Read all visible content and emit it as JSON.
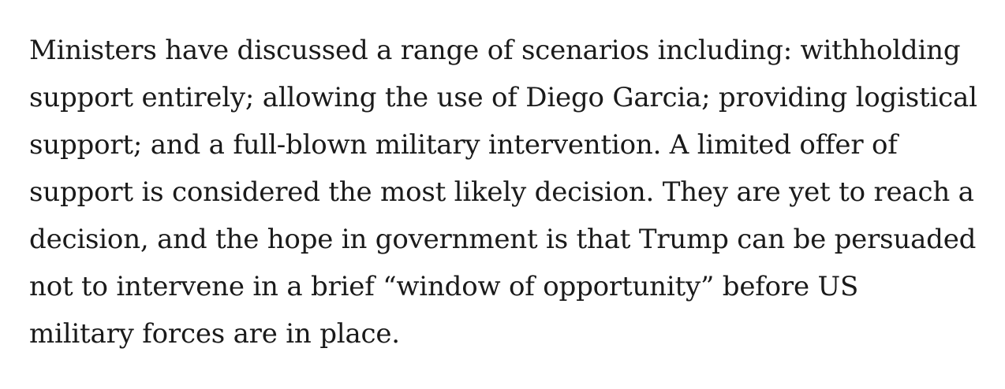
{
  "article": {
    "paragraph_lines": [
      "Ministers have discussed a range of scenarios including: withholding",
      "support entirely; allowing the use of Diego Garcia; providing logistical",
      "support; and a full-blown military intervention. A limited offer of",
      "support is considered the most likely decision. They are yet to reach a",
      "decision, and the hope in government is that Trump can be persuaded",
      "not to intervene in a brief “window of opportunity” before US",
      "military forces are in place."
    ]
  }
}
